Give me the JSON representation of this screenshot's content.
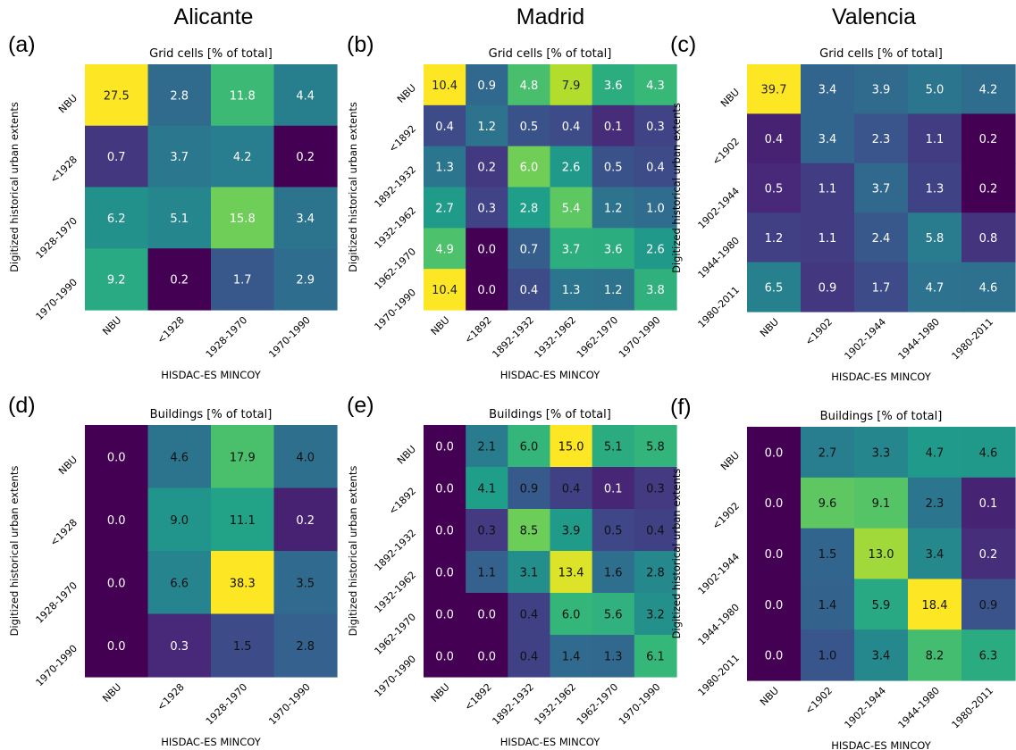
{
  "columns": [
    "Alicante",
    "Madrid",
    "Valencia"
  ],
  "chart_data": [
    {
      "type": "heatmap",
      "label": "(a)",
      "city": "Alicante",
      "title": "Grid cells [% of total]",
      "xlabel": "HISDAC-ES MINCOY",
      "ylabel": "Digitized historical urban extents",
      "x_categories": [
        "NBU",
        "<1928",
        "1928-1970",
        "1970-1990"
      ],
      "y_categories": [
        "NBU",
        "<1928",
        "1928-1970",
        "1970-1990"
      ],
      "values": [
        [
          27.5,
          2.8,
          11.8,
          4.4
        ],
        [
          0.7,
          3.7,
          4.2,
          0.2
        ],
        [
          6.2,
          5.1,
          15.8,
          3.4
        ],
        [
          9.2,
          0.2,
          1.7,
          2.9
        ]
      ],
      "labels": [
        [
          "27.5",
          "2.8",
          "11.8",
          "4.4"
        ],
        [
          "0.7",
          "3.7",
          "4.2",
          "0.2"
        ],
        [
          "6.2",
          "5.1",
          "15.8",
          "3.4"
        ],
        [
          "9.2",
          "0.2",
          "1.7",
          "2.9"
        ]
      ]
    },
    {
      "type": "heatmap",
      "label": "(b)",
      "city": "Madrid",
      "title": "Grid cells [% of total]",
      "xlabel": "HISDAC-ES MINCOY",
      "ylabel": "Digitized historical urban extents",
      "x_categories": [
        "NBU",
        "<1892",
        "1892-1932",
        "1932-1962",
        "1962-1970",
        "1970-1990"
      ],
      "y_categories": [
        "NBU",
        "<1892",
        "1892-1932",
        "1932-1962",
        "1962-1970",
        "1970-1990"
      ],
      "values": [
        [
          10.4,
          0.9,
          4.8,
          7.9,
          3.6,
          4.3
        ],
        [
          0.4,
          1.2,
          0.5,
          0.4,
          0.1,
          0.3
        ],
        [
          1.3,
          0.2,
          6.0,
          2.6,
          0.5,
          0.4
        ],
        [
          2.7,
          0.3,
          2.8,
          5.4,
          1.2,
          1.0
        ],
        [
          4.9,
          0.0,
          0.7,
          3.7,
          3.6,
          2.6
        ],
        [
          10.4,
          0.0,
          0.4,
          1.3,
          1.2,
          3.8
        ]
      ],
      "labels": [
        [
          "10.4",
          "0.9",
          "4.8",
          "7.9",
          "3.6",
          "4.3"
        ],
        [
          "0.4",
          "1.2",
          "0.5",
          "0.4",
          "0.1",
          "0.3"
        ],
        [
          "1.3",
          "0.2",
          "6.0",
          "2.6",
          "0.5",
          "0.4"
        ],
        [
          "2.7",
          "0.3",
          "2.8",
          "5.4",
          "1.2",
          "1.0"
        ],
        [
          "4.9",
          "0.0",
          "0.7",
          "3.7",
          "3.6",
          "2.6"
        ],
        [
          "10.4",
          "0.0",
          "0.4",
          "1.3",
          "1.2",
          "3.8"
        ]
      ]
    },
    {
      "type": "heatmap",
      "label": "(c)",
      "city": "Valencia",
      "title": "Grid cells [% of total]",
      "xlabel": "HISDAC-ES MINCOY",
      "ylabel": "Digitized historical urban extents",
      "x_categories": [
        "NBU",
        "<1902",
        "1902-1944",
        "1944-1980",
        "1980-2011"
      ],
      "y_categories": [
        "NBU",
        "<1902",
        "1902-1944",
        "1944-1980",
        "1980-2011"
      ],
      "values": [
        [
          39.7,
          3.4,
          3.9,
          5.0,
          4.2
        ],
        [
          0.4,
          3.4,
          2.3,
          1.1,
          0.2
        ],
        [
          0.5,
          1.1,
          3.7,
          1.3,
          0.2
        ],
        [
          1.2,
          1.1,
          2.4,
          5.8,
          0.8
        ],
        [
          6.5,
          0.9,
          1.7,
          4.7,
          4.6
        ]
      ],
      "labels": [
        [
          "39.7",
          "3.4",
          "3.9",
          "5.0",
          "4.2"
        ],
        [
          "0.4",
          "3.4",
          "2.3",
          "1.1",
          "0.2"
        ],
        [
          "0.5",
          "1.1",
          "3.7",
          "1.3",
          "0.2"
        ],
        [
          "1.2",
          "1.1",
          "2.4",
          "5.8",
          "0.8"
        ],
        [
          "6.5",
          "0.9",
          "1.7",
          "4.7",
          "4.6"
        ]
      ]
    },
    {
      "type": "heatmap",
      "label": "(d)",
      "city": "Alicante",
      "title": "Buildings [% of total]",
      "xlabel": "HISDAC-ES MINCOY",
      "ylabel": "Digitized historical urban extents",
      "x_categories": [
        "NBU",
        "<1928",
        "1928-1970",
        "1970-1990"
      ],
      "y_categories": [
        "NBU",
        "<1928",
        "1928-1970",
        "1970-1990"
      ],
      "values": [
        [
          0.0,
          4.6,
          17.9,
          4.0
        ],
        [
          0.0,
          9.0,
          11.1,
          0.2
        ],
        [
          0.0,
          6.6,
          38.3,
          3.5
        ],
        [
          0.0,
          0.3,
          1.5,
          2.8
        ]
      ],
      "labels": [
        [
          "0.0",
          "4.6",
          "17.9",
          "4.0"
        ],
        [
          "0.0",
          "9.0",
          "11.1",
          "0.2"
        ],
        [
          "0.0",
          "6.6",
          "38.3",
          "3.5"
        ],
        [
          "0.0",
          "0.3",
          "1.5",
          "2.8"
        ]
      ]
    },
    {
      "type": "heatmap",
      "label": "(e)",
      "city": "Madrid",
      "title": "Buildings [% of total]",
      "xlabel": "HISDAC-ES MINCOY",
      "ylabel": "Digitized historical urban extents",
      "x_categories": [
        "NBU",
        "<1892",
        "1892-1932",
        "1932-1962",
        "1962-1970",
        "1970-1990"
      ],
      "y_categories": [
        "NBU",
        "<1892",
        "1892-1932",
        "1932-1962",
        "1962-1970",
        "1970-1990"
      ],
      "values": [
        [
          0.0,
          2.1,
          6.0,
          15.0,
          5.1,
          5.8
        ],
        [
          0.0,
          4.1,
          0.9,
          0.4,
          0.1,
          0.3
        ],
        [
          0.0,
          0.3,
          8.5,
          3.9,
          0.5,
          0.4
        ],
        [
          0.0,
          1.1,
          3.1,
          13.4,
          1.6,
          2.8
        ],
        [
          0.0,
          0.0,
          0.4,
          6.0,
          5.6,
          3.2
        ],
        [
          0.0,
          0.0,
          0.4,
          1.4,
          1.3,
          6.1
        ]
      ],
      "labels": [
        [
          "0.0",
          "2.1",
          "6.0",
          "15.0",
          "5.1",
          "5.8"
        ],
        [
          "0.0",
          "4.1",
          "0.9",
          "0.4",
          "0.1",
          "0.3"
        ],
        [
          "0.0",
          "0.3",
          "8.5",
          "3.9",
          "0.5",
          "0.4"
        ],
        [
          "0.0",
          "1.1",
          "3.1",
          "13.4",
          "1.6",
          "2.8"
        ],
        [
          "0.0",
          "0.0",
          "0.4",
          "6.0",
          "5.6",
          "3.2"
        ],
        [
          "0.0",
          "0.0",
          "0.4",
          "1.4",
          "1.3",
          "6.1"
        ]
      ]
    },
    {
      "type": "heatmap",
      "label": "(f)",
      "city": "Valencia",
      "title": "Buildings [% of total]",
      "xlabel": "HISDAC-ES MINCOY",
      "ylabel": "Digitized historical urban extents",
      "x_categories": [
        "NBU",
        "<1902",
        "1902-1944",
        "1944-1980",
        "1980-2011"
      ],
      "y_categories": [
        "NBU",
        "<1902",
        "1902-1944",
        "1944-1980",
        "1980-2011"
      ],
      "values": [
        [
          0.0,
          2.7,
          3.3,
          4.7,
          4.6
        ],
        [
          0.0,
          9.6,
          9.1,
          2.3,
          0.1
        ],
        [
          0.0,
          1.5,
          13.0,
          3.4,
          0.2
        ],
        [
          0.0,
          1.4,
          5.9,
          18.4,
          0.9
        ],
        [
          0.0,
          1.0,
          3.4,
          8.2,
          6.3
        ]
      ],
      "labels": [
        [
          "0.0",
          "2.7",
          "3.3",
          "4.7",
          "4.6"
        ],
        [
          "0.0",
          "9.6",
          "9.1",
          "2.3",
          "0.1"
        ],
        [
          "0.0",
          "1.5",
          "13.0",
          "3.4",
          "0.2"
        ],
        [
          "0.0",
          "1.4",
          "5.9",
          "18.4",
          "0.9"
        ],
        [
          "0.0",
          "1.0",
          "3.4",
          "8.2",
          "6.3"
        ]
      ]
    }
  ]
}
